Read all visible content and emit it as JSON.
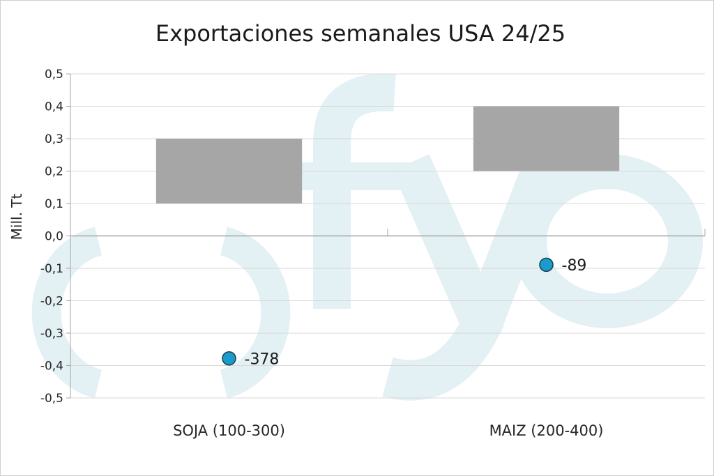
{
  "chart_data": {
    "type": "bar",
    "title": "Exportaciones semanales USA 24/25",
    "ylabel": "Mill. Tt",
    "ylim": [
      -0.5,
      0.5
    ],
    "y_ticks": [
      0.5,
      0.4,
      0.3,
      0.2,
      0.1,
      0.0,
      -0.1,
      -0.2,
      -0.3,
      -0.4,
      -0.5
    ],
    "y_tick_labels": [
      "0,5",
      "0,4",
      "0,3",
      "0,2",
      "0,1",
      "0,0",
      "-0,1",
      "-0,2",
      "-0,3",
      "-0,4",
      "-0,5"
    ],
    "categories": [
      "SOJA (100-300)",
      "MAIZ (200-400)"
    ],
    "series": [
      {
        "type": "floating-bar",
        "ranges": [
          [
            0.1,
            0.3
          ],
          [
            0.2,
            0.4
          ]
        ],
        "color": "#a6a6a6"
      },
      {
        "type": "scatter",
        "values": [
          -0.378,
          -0.089
        ],
        "labels": [
          "-378",
          "-89"
        ],
        "color": "#1a9bc9"
      }
    ],
    "grid": true,
    "watermark": "fyo",
    "watermark_color": "#e3f0f4"
  }
}
